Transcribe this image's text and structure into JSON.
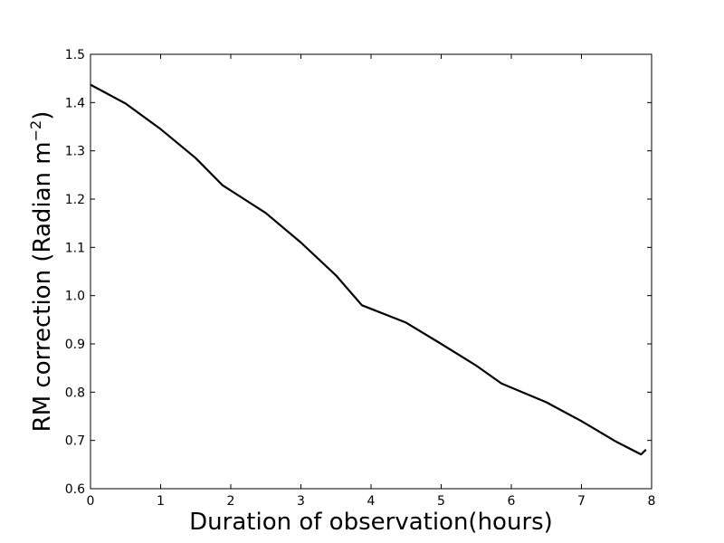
{
  "chart_data": {
    "type": "line",
    "title": "",
    "xlabel": "Duration of observation(hours)",
    "ylabel_main": "RM correction (Radian m",
    "ylabel_sup": "−2",
    "ylabel_close": ")",
    "xlim": [
      0,
      8
    ],
    "ylim": [
      0.6,
      1.5
    ],
    "xticks": [
      {
        "value": 0,
        "label": "0"
      },
      {
        "value": 1,
        "label": "1"
      },
      {
        "value": 2,
        "label": "2"
      },
      {
        "value": 3,
        "label": "3"
      },
      {
        "value": 4,
        "label": "4"
      },
      {
        "value": 5,
        "label": "5"
      },
      {
        "value": 6,
        "label": "6"
      },
      {
        "value": 7,
        "label": "7"
      },
      {
        "value": 8,
        "label": "8"
      }
    ],
    "yticks": [
      {
        "value": 0.6,
        "label": "0.6"
      },
      {
        "value": 0.7,
        "label": "0.7"
      },
      {
        "value": 0.8,
        "label": "0.8"
      },
      {
        "value": 0.9,
        "label": "0.9"
      },
      {
        "value": 1.0,
        "label": "1.0"
      },
      {
        "value": 1.1,
        "label": "1.1"
      },
      {
        "value": 1.2,
        "label": "1.2"
      },
      {
        "value": 1.3,
        "label": "1.3"
      },
      {
        "value": 1.4,
        "label": "1.4"
      },
      {
        "value": 1.5,
        "label": "1.5"
      }
    ],
    "grid": false,
    "legend": "none",
    "line_color": "#000000",
    "series": [
      {
        "x": [
          0,
          0.5,
          1.0,
          1.5,
          1.88,
          2.5,
          3.0,
          3.5,
          3.87,
          4.5,
          5.0,
          5.5,
          5.86,
          6.5,
          7.0,
          7.5,
          7.85,
          7.92
        ],
        "y": [
          1.437,
          1.398,
          1.345,
          1.285,
          1.229,
          1.171,
          1.11,
          1.042,
          0.98,
          0.944,
          0.9,
          0.855,
          0.818,
          0.779,
          0.74,
          0.697,
          0.671,
          0.681
        ]
      }
    ]
  }
}
